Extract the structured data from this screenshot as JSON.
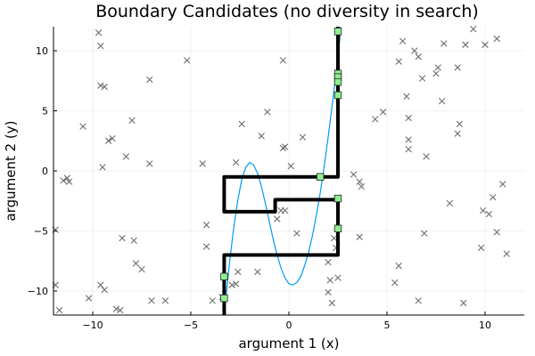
{
  "chart_data": {
    "type": "scatter",
    "title": "Boundary Candidates (no diversity in search)",
    "xlabel": "argument 1 (x)",
    "ylabel": "argument 2 (y)",
    "xlim": [
      -12,
      12
    ],
    "ylim": [
      -12,
      12
    ],
    "xticks": [
      -10,
      -5,
      0,
      5,
      10
    ],
    "yticks": [
      -10,
      -5,
      0,
      5,
      10
    ],
    "grid": true,
    "colors": {
      "samples": "#6f6f6f",
      "curve": "#009af9",
      "boundary": "#000000",
      "candidates": "#90ee90"
    },
    "samples": [
      [
        -11.7,
        -11.6
      ],
      [
        -11.9,
        -9.5
      ],
      [
        -11.5,
        -0.8
      ],
      [
        -11.3,
        -0.6
      ],
      [
        -11.2,
        -0.9
      ],
      [
        -11.9,
        -4.9
      ],
      [
        -10.5,
        3.7
      ],
      [
        -10.2,
        -10.6
      ],
      [
        -9.7,
        11.5
      ],
      [
        -9.6,
        10.4
      ],
      [
        -9.6,
        7.1
      ],
      [
        -9.4,
        7.0
      ],
      [
        -9.6,
        -9.5
      ],
      [
        -9.4,
        -9.9
      ],
      [
        -9.5,
        0.3
      ],
      [
        -9.2,
        2.5
      ],
      [
        -9.0,
        2.7
      ],
      [
        -8.8,
        -11.5
      ],
      [
        -8.6,
        -11.6
      ],
      [
        -8.5,
        -5.6
      ],
      [
        -8.3,
        1.2
      ],
      [
        -8.0,
        4.2
      ],
      [
        -7.9,
        -5.8
      ],
      [
        -7.8,
        -7.7
      ],
      [
        -7.5,
        -8.2
      ],
      [
        -7.1,
        7.6
      ],
      [
        -7.1,
        0.6
      ],
      [
        -7.0,
        -10.8
      ],
      [
        -6.3,
        -10.8
      ],
      [
        -5.2,
        9.2
      ],
      [
        -4.4,
        0.6
      ],
      [
        -4.2,
        -4.5
      ],
      [
        -4.2,
        -6.3
      ],
      [
        -3.9,
        -10.8
      ],
      [
        -3.4,
        -10.5
      ],
      [
        -2.9,
        -9.5
      ],
      [
        -2.7,
        -9.4
      ],
      [
        -2.6,
        -8.4
      ],
      [
        -2.4,
        3.9
      ],
      [
        -2.7,
        0.7
      ],
      [
        -1.6,
        -8.4
      ],
      [
        -1.4,
        2.9
      ],
      [
        -1.1,
        4.9
      ],
      [
        -0.4,
        -3.3
      ],
      [
        -0.2,
        -3.3
      ],
      [
        -0.6,
        -4.0
      ],
      [
        -0.3,
        1.9
      ],
      [
        -0.3,
        9.2
      ],
      [
        -0.2,
        2.0
      ],
      [
        0.1,
        0.4
      ],
      [
        0.4,
        -5.2
      ],
      [
        0.7,
        2.8
      ],
      [
        2.0,
        -10.1
      ],
      [
        2.1,
        -9.1
      ],
      [
        2.2,
        -11.0
      ],
      [
        2.3,
        -5.6
      ],
      [
        2.4,
        -6.4
      ],
      [
        2.5,
        -8.9
      ],
      [
        2.0,
        -7.6
      ],
      [
        3.3,
        -0.3
      ],
      [
        3.6,
        -0.9
      ],
      [
        3.6,
        -5.5
      ],
      [
        3.7,
        -1.3
      ],
      [
        4.4,
        4.3
      ],
      [
        4.8,
        4.9
      ],
      [
        5.4,
        -9.3
      ],
      [
        5.6,
        -7.9
      ],
      [
        5.6,
        9.1
      ],
      [
        5.8,
        10.8
      ],
      [
        6.0,
        6.2
      ],
      [
        6.1,
        4.4
      ],
      [
        6.1,
        2.6
      ],
      [
        6.1,
        1.8
      ],
      [
        6.4,
        10.0
      ],
      [
        6.6,
        -10.8
      ],
      [
        6.6,
        9.5
      ],
      [
        6.8,
        7.7
      ],
      [
        6.9,
        -5.2
      ],
      [
        7.0,
        1.2
      ],
      [
        7.5,
        8.1
      ],
      [
        7.6,
        8.6
      ],
      [
        7.8,
        5.8
      ],
      [
        7.9,
        10.6
      ],
      [
        8.2,
        -2.7
      ],
      [
        8.6,
        8.6
      ],
      [
        8.6,
        3.1
      ],
      [
        8.7,
        3.9
      ],
      [
        8.9,
        -11.0
      ],
      [
        9.0,
        10.5
      ],
      [
        9.4,
        11.8
      ],
      [
        9.8,
        -6.4
      ],
      [
        9.9,
        -3.3
      ],
      [
        10.0,
        10.5
      ],
      [
        10.2,
        -3.6
      ],
      [
        10.4,
        -2.2
      ],
      [
        10.6,
        -5.1
      ],
      [
        10.6,
        11.0
      ],
      [
        10.9,
        -1.1
      ],
      [
        11.1,
        -6.9
      ]
    ],
    "curve": [
      [
        -3.3,
        -12.0
      ],
      [
        -3.2,
        -10.4
      ],
      [
        -3.1,
        -8.8
      ],
      [
        -3.0,
        -7.3
      ],
      [
        -2.9,
        -5.9
      ],
      [
        -2.8,
        -4.6
      ],
      [
        -2.6,
        -2.4
      ],
      [
        -2.4,
        -0.7
      ],
      [
        -2.2,
        0.3
      ],
      [
        -2.0,
        0.7
      ],
      [
        -1.8,
        0.5
      ],
      [
        -1.6,
        -0.2
      ],
      [
        -1.4,
        -1.3
      ],
      [
        -1.2,
        -2.7
      ],
      [
        -1.0,
        -4.2
      ],
      [
        -0.8,
        -5.7
      ],
      [
        -0.6,
        -7.0
      ],
      [
        -0.4,
        -8.1
      ],
      [
        -0.2,
        -8.9
      ],
      [
        0.0,
        -9.4
      ],
      [
        0.2,
        -9.5
      ],
      [
        0.4,
        -9.3
      ],
      [
        0.6,
        -8.8
      ],
      [
        0.8,
        -7.9
      ],
      [
        1.0,
        -6.8
      ],
      [
        1.2,
        -5.4
      ],
      [
        1.4,
        -3.7
      ],
      [
        1.6,
        -1.8
      ],
      [
        1.8,
        0.4
      ],
      [
        2.0,
        2.8
      ],
      [
        2.2,
        5.4
      ],
      [
        2.4,
        8.1
      ],
      [
        2.6,
        11.0
      ],
      [
        2.64,
        12.0
      ]
    ],
    "boundary_path": [
      [
        -3.3,
        -12.0
      ],
      [
        -3.3,
        -7.0
      ],
      [
        2.5,
        -7.0
      ],
      [
        2.5,
        -2.4
      ],
      [
        -0.7,
        -2.4
      ],
      [
        -0.7,
        -3.4
      ],
      [
        -3.3,
        -3.4
      ],
      [
        -3.3,
        -0.5
      ],
      [
        2.5,
        -0.5
      ],
      [
        2.5,
        12.0
      ]
    ],
    "candidates": [
      [
        2.5,
        11.6
      ],
      [
        2.5,
        8.1
      ],
      [
        2.5,
        7.8
      ],
      [
        2.5,
        7.4
      ],
      [
        2.5,
        6.3
      ],
      [
        1.6,
        -0.5
      ],
      [
        2.5,
        -2.3
      ],
      [
        2.5,
        -4.8
      ],
      [
        -3.3,
        -8.8
      ],
      [
        -3.3,
        -10.6
      ]
    ]
  }
}
